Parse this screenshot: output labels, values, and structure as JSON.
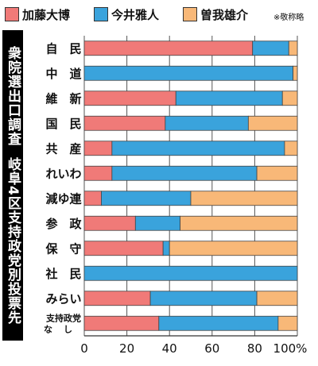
{
  "legend": {
    "items": [
      {
        "label": "加藤大博",
        "color": "#f07a78"
      },
      {
        "label": "今井雅人",
        "color": "#3aa3dc"
      },
      {
        "label": "曽我雄介",
        "color": "#f8b878"
      }
    ],
    "note": "※敬称略"
  },
  "title_vertical": {
    "part1": "衆院選出口調査",
    "part2": "岐阜4区支持政党別投票先"
  },
  "chart_data": {
    "type": "bar",
    "orientation": "horizontal",
    "stacked": true,
    "percent": true,
    "categories": [
      "自　民",
      "中　道",
      "維　新",
      "国　民",
      "共　産",
      "れいわ",
      "減ゆ連",
      "参　政",
      "保　守",
      "社　民",
      "みらい",
      "支持政党なし"
    ],
    "series": [
      {
        "name": "加藤大博",
        "color": "#f07a78",
        "values": [
          79,
          0,
          43,
          38,
          13,
          13,
          8,
          24,
          37,
          0,
          31,
          35
        ]
      },
      {
        "name": "今井雅人",
        "color": "#3aa3dc",
        "values": [
          17,
          98,
          50,
          39,
          81,
          68,
          42,
          21,
          3,
          100,
          50,
          56
        ]
      },
      {
        "name": "曽我雄介",
        "color": "#f8b878",
        "values": [
          4,
          2,
          7,
          23,
          6,
          19,
          50,
          55,
          60,
          0,
          19,
          9
        ]
      }
    ],
    "xlim": [
      0,
      100
    ],
    "xticks": [
      "0",
      "20",
      "40",
      "60",
      "80",
      "100%"
    ],
    "grid": true
  }
}
